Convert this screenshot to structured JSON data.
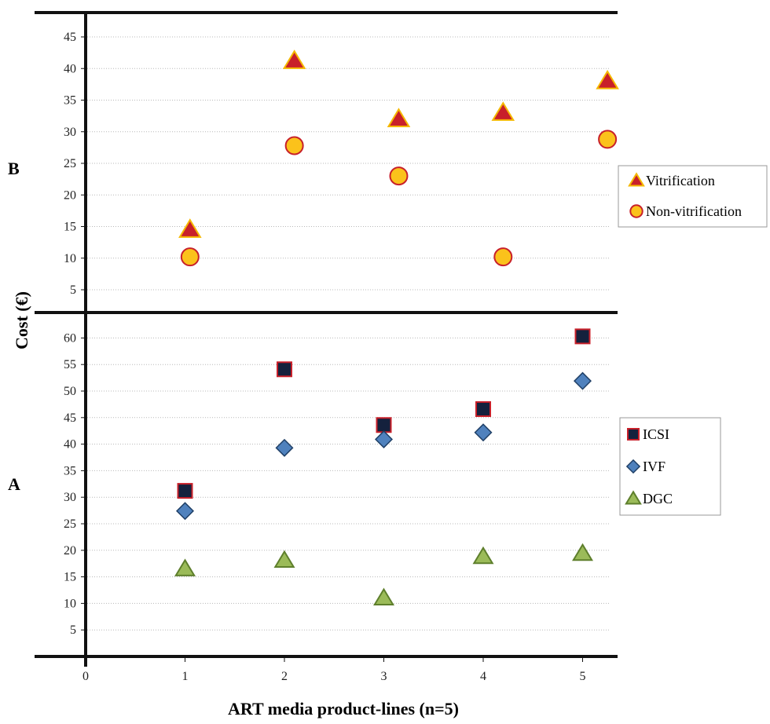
{
  "chart_data": [
    {
      "panel": "B",
      "type": "scatter",
      "ylim": [
        0,
        45
      ],
      "yticks": [
        5,
        10,
        15,
        20,
        25,
        30,
        35,
        40,
        45
      ],
      "grid": true,
      "legend_position": "right",
      "series": [
        {
          "name": "Vitrification",
          "marker": "triangle",
          "fill": "#c8202a",
          "stroke": "#f5b800",
          "points": [
            [
              1.05,
              14.5
            ],
            [
              2.1,
              41.2
            ],
            [
              3.15,
              32.0
            ],
            [
              4.2,
              33.0
            ],
            [
              5.25,
              38.0
            ]
          ]
        },
        {
          "name": "Non-vitrification",
          "marker": "circle",
          "fill": "#fbc21b",
          "stroke": "#c8202a",
          "points": [
            [
              1.05,
              10.2
            ],
            [
              2.1,
              27.8
            ],
            [
              3.15,
              23.0
            ],
            [
              4.2,
              10.2
            ],
            [
              5.25,
              28.8
            ]
          ]
        }
      ]
    },
    {
      "panel": "A",
      "type": "scatter",
      "ylim": [
        0,
        65
      ],
      "yticks": [
        5,
        10,
        15,
        20,
        25,
        30,
        35,
        40,
        45,
        50,
        55,
        60
      ],
      "grid": true,
      "legend_position": "right",
      "series": [
        {
          "name": "ICSI",
          "marker": "square",
          "fill": "#14213d",
          "stroke": "#c8202a",
          "points": [
            [
              1,
              31.2
            ],
            [
              2,
              54.1
            ],
            [
              3,
              43.6
            ],
            [
              4,
              46.6
            ],
            [
              5,
              60.3
            ]
          ]
        },
        {
          "name": "IVF",
          "marker": "diamond",
          "fill": "#4f81bd",
          "stroke": "#1f3f66",
          "points": [
            [
              1,
              27.4
            ],
            [
              2,
              39.3
            ],
            [
              3,
              40.9
            ],
            [
              4,
              42.2
            ],
            [
              5,
              51.9
            ]
          ]
        },
        {
          "name": "DGC",
          "marker": "triangle",
          "fill": "#9bbb59",
          "stroke": "#5e7f2c",
          "points": [
            [
              1,
              16.5
            ],
            [
              2,
              18.1
            ],
            [
              3,
              11.0
            ],
            [
              4,
              18.8
            ],
            [
              5,
              19.4
            ]
          ]
        }
      ]
    }
  ],
  "labels": {
    "panel_b": "B",
    "panel_a": "A",
    "ylabel": "Cost (€)",
    "xlabel": "ART media product-lines (n=5)"
  },
  "x_axis": {
    "xlim": [
      0,
      5.35
    ],
    "ticks": [
      0,
      1,
      2,
      3,
      4,
      5
    ]
  }
}
